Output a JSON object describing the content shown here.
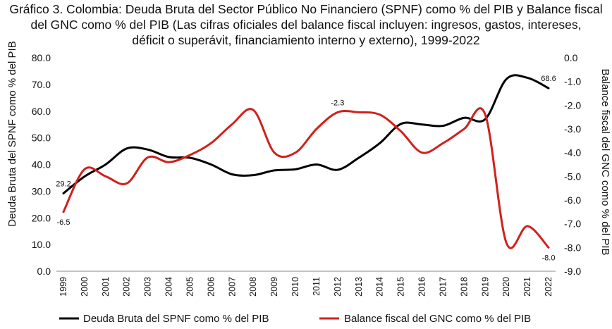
{
  "chart_data": {
    "type": "line",
    "title_lines": [
      "Gráfico 3. Colombia: Deuda Bruta del Sector Público No Financiero (SPNF) como % del PIB y Balance fiscal",
      "del GNC como % del PIB (Las cifras oficiales del balance fiscal incluyen: ingresos, gastos, intereses,",
      "déficit o superávit, financiamiento interno y externo), 1999-2022"
    ],
    "x": [
      "1999",
      "2000",
      "2001",
      "2002",
      "2003",
      "2004",
      "2005",
      "2006",
      "2007",
      "2008",
      "2009",
      "2010",
      "2011",
      "2012",
      "2013",
      "2014",
      "2015",
      "2016",
      "2017",
      "2018",
      "2019",
      "2020",
      "2021",
      "2022"
    ],
    "y_left": {
      "label": "Deuda Bruta del SPNF como % del PIB",
      "range": [
        0,
        80
      ],
      "ticks": [
        "0.0",
        "10.0",
        "20.0",
        "30.0",
        "40.0",
        "50.0",
        "60.0",
        "70.0",
        "80.0"
      ]
    },
    "y_right": {
      "label": "Balance fiscal del GNC como % del PIB",
      "range": [
        -9,
        0
      ],
      "ticks": [
        "0.0",
        "-1.0",
        "-2.0",
        "-3.0",
        "-4.0",
        "-5.0",
        "-6.0",
        "-7.0",
        "-8.0",
        "-9.0"
      ]
    },
    "series": [
      {
        "name": "Deuda Bruta del SPNF como % del PIB",
        "axis": "left",
        "color": "#000000",
        "values": [
          29.2,
          35.5,
          40.0,
          46.0,
          45.6,
          42.8,
          42.5,
          40.0,
          36.3,
          36.0,
          37.8,
          38.2,
          40.0,
          38.0,
          42.5,
          48.0,
          55.2,
          55.0,
          54.5,
          57.5,
          57.0,
          72.0,
          72.5,
          68.6
        ]
      },
      {
        "name": "Balance fiscal del GNC como % del PIB",
        "axis": "right",
        "color": "#d0211c",
        "values": [
          -6.5,
          -4.7,
          -5.0,
          -5.3,
          -4.2,
          -4.4,
          -4.1,
          -3.6,
          -2.8,
          -2.2,
          -4.0,
          -4.0,
          -3.0,
          -2.3,
          -2.3,
          -2.4,
          -3.1,
          -4.0,
          -3.6,
          -3.0,
          -2.4,
          -7.8,
          -7.1,
          -8.0
        ]
      }
    ],
    "annotations": [
      {
        "series": 0,
        "index": 0,
        "text": "29.2",
        "position": "above"
      },
      {
        "series": 1,
        "index": 0,
        "text": "-6.5",
        "position": "below"
      },
      {
        "series": 1,
        "index": 13,
        "text": "-2.3",
        "position": "above"
      },
      {
        "series": 0,
        "index": 23,
        "text": "68.6",
        "position": "above"
      },
      {
        "series": 1,
        "index": 23,
        "text": "-8.0",
        "position": "below"
      }
    ],
    "legend": "bottom",
    "grid": false
  }
}
